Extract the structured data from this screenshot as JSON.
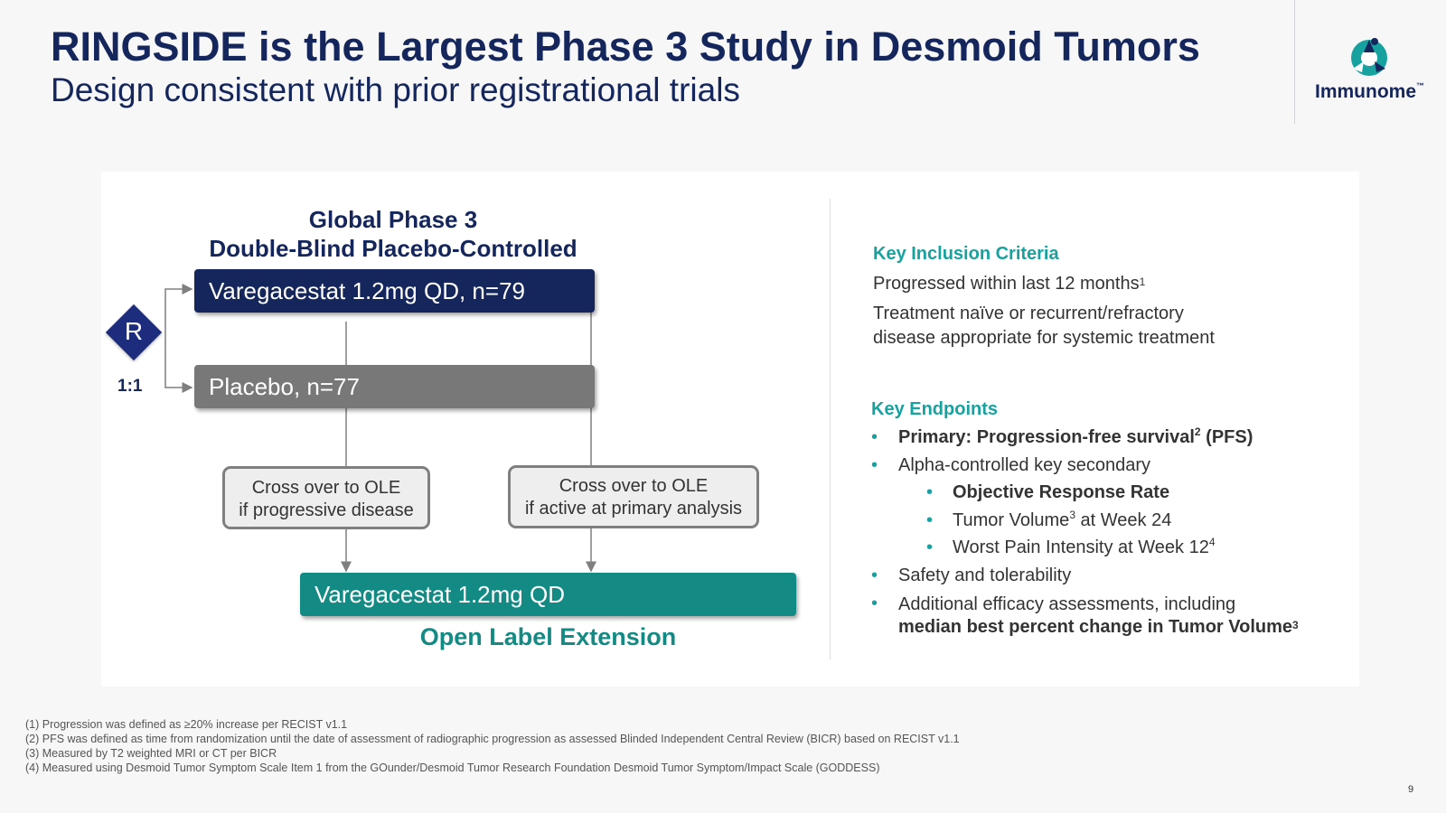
{
  "header": {
    "title": "RINGSIDE is the Largest Phase 3 Study in Desmoid Tumors",
    "subtitle": "Design consistent with prior registrational trials"
  },
  "logo": {
    "text": "Immunome",
    "tm": "™",
    "icon": "immunome-logo-icon"
  },
  "design": {
    "title_line1": "Global Phase 3",
    "title_line2": "Double-Blind Placebo-Controlled",
    "randomization": "R",
    "ratio": "1:1",
    "arm_drug": "Varegacestat 1.2mg QD, n=79",
    "arm_placebo": "Placebo, n=77",
    "crossover_a_line1": "Cross over to OLE",
    "crossover_a_line2": "if progressive disease",
    "crossover_b_line1": "Cross over to OLE",
    "crossover_b_line2": "if active at primary analysis",
    "ole_arm": "Varegacestat 1.2mg QD",
    "ole_label": "Open Label Extension"
  },
  "inclusion": {
    "heading": "Key Inclusion Criteria",
    "item1": "Progressed within last 12 months",
    "item1_sup": "1",
    "item2_line1": "Treatment naïve or recurrent/refractory",
    "item2_line2": "disease appropriate for systemic treatment"
  },
  "endpoints": {
    "heading": "Key Endpoints",
    "primary_a": "Primary: Progression-free survival",
    "primary_sup": "2",
    "primary_b": " (PFS)",
    "secondary": "Alpha-controlled key secondary",
    "sec1": "Objective Response Rate",
    "sec2_a": "Tumor Volume",
    "sec2_sup": "3",
    "sec2_b": " at Week 24",
    "sec3_a": "Worst Pain Intensity at Week 12",
    "sec3_sup": "4",
    "safety": "Safety and tolerability",
    "additional_line1": "Additional efficacy assessments, including",
    "additional_line2": "median best percent change in Tumor Volume",
    "additional_sup": "3"
  },
  "footnotes": [
    "(1) Progression was defined as ≥20% increase per RECIST v1.1",
    "(2) PFS was defined as time from randomization until the date of assessment of radiographic progression as assessed Blinded Independent Central Review (BICR) based on RECIST v1.1",
    "(3) Measured by T2 weighted MRI or CT per BICR",
    "(4) Measured using Desmoid Tumor Symptom Scale Item 1 from the GOunder/Desmoid Tumor Research Foundation Desmoid Tumor Symptom/Impact Scale (GODDESS)"
  ],
  "page_number": "9",
  "colors": {
    "navy": "#14265c",
    "teal": "#17a2a0",
    "ole_green": "#138b84",
    "placebo_gray": "#787878"
  }
}
